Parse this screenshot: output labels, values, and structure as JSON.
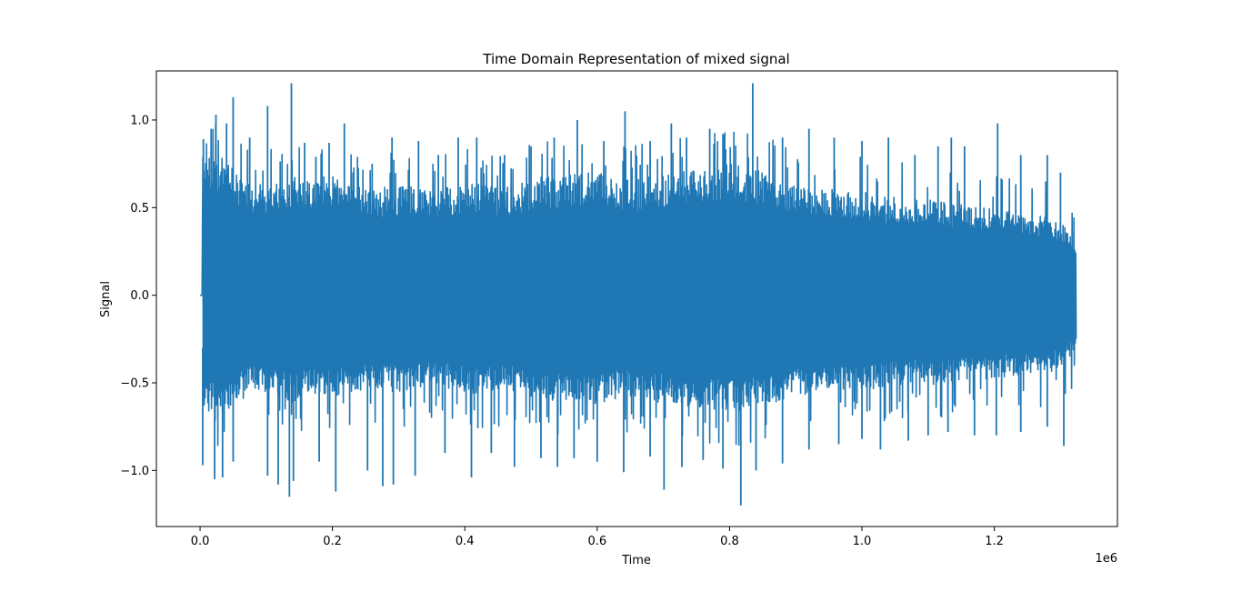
{
  "chart_data": {
    "type": "line",
    "title": "Time Domain Representation of mixed signal",
    "xlabel": "Time",
    "ylabel": "Signal",
    "x_offset_label": "1e6",
    "x_scale": 1000000,
    "xlim": [
      -66000,
      1386000
    ],
    "ylim": [
      -1.32,
      1.28
    ],
    "x_ticks": [
      0,
      200000,
      400000,
      600000,
      800000,
      1000000,
      1200000
    ],
    "x_tick_labels": [
      "0.0",
      "0.2",
      "0.4",
      "0.6",
      "0.8",
      "1.0",
      "1.2"
    ],
    "y_ticks": [
      -1.0,
      -0.5,
      0.0,
      0.5,
      1.0
    ],
    "y_tick_labels": [
      "−1.0",
      "−0.5",
      "0.0",
      "0.5",
      "1.0"
    ],
    "grid": false,
    "series": [
      {
        "color": "#1f77b4",
        "x_range": [
          0,
          1323000
        ],
        "leading_zero_until": 3000,
        "typical_band": [
          [
            5000,
            -0.7,
            0.8
          ],
          [
            20000,
            -0.65,
            0.78
          ],
          [
            40000,
            -0.68,
            0.8
          ],
          [
            60000,
            -0.6,
            0.68
          ],
          [
            80000,
            -0.55,
            0.65
          ],
          [
            100000,
            -0.55,
            0.64
          ],
          [
            120000,
            -0.58,
            0.66
          ],
          [
            140000,
            -0.62,
            0.7
          ],
          [
            160000,
            -0.58,
            0.66
          ],
          [
            180000,
            -0.56,
            0.68
          ],
          [
            200000,
            -0.58,
            0.68
          ],
          [
            220000,
            -0.55,
            0.65
          ],
          [
            240000,
            -0.55,
            0.62
          ],
          [
            260000,
            -0.52,
            0.6
          ],
          [
            280000,
            -0.55,
            0.62
          ],
          [
            300000,
            -0.55,
            0.62
          ],
          [
            320000,
            -0.56,
            0.64
          ],
          [
            340000,
            -0.5,
            0.6
          ],
          [
            360000,
            -0.52,
            0.6
          ],
          [
            380000,
            -0.54,
            0.62
          ],
          [
            400000,
            -0.56,
            0.64
          ],
          [
            420000,
            -0.56,
            0.64
          ],
          [
            440000,
            -0.55,
            0.63
          ],
          [
            460000,
            -0.54,
            0.62
          ],
          [
            480000,
            -0.56,
            0.64
          ],
          [
            500000,
            -0.58,
            0.66
          ],
          [
            520000,
            -0.6,
            0.68
          ],
          [
            540000,
            -0.6,
            0.68
          ],
          [
            560000,
            -0.62,
            0.7
          ],
          [
            580000,
            -0.62,
            0.7
          ],
          [
            600000,
            -0.62,
            0.7
          ],
          [
            620000,
            -0.6,
            0.68
          ],
          [
            640000,
            -0.58,
            0.66
          ],
          [
            660000,
            -0.58,
            0.66
          ],
          [
            680000,
            -0.6,
            0.68
          ],
          [
            700000,
            -0.62,
            0.7
          ],
          [
            720000,
            -0.62,
            0.7
          ],
          [
            740000,
            -0.64,
            0.72
          ],
          [
            760000,
            -0.64,
            0.72
          ],
          [
            780000,
            -0.66,
            0.74
          ],
          [
            800000,
            -0.66,
            0.76
          ],
          [
            820000,
            -0.66,
            0.74
          ],
          [
            840000,
            -0.64,
            0.72
          ],
          [
            860000,
            -0.62,
            0.7
          ],
          [
            880000,
            -0.6,
            0.66
          ],
          [
            900000,
            -0.58,
            0.64
          ],
          [
            920000,
            -0.56,
            0.62
          ],
          [
            940000,
            -0.56,
            0.62
          ],
          [
            960000,
            -0.54,
            0.6
          ],
          [
            980000,
            -0.54,
            0.6
          ],
          [
            1000000,
            -0.55,
            0.6
          ],
          [
            1020000,
            -0.54,
            0.58
          ],
          [
            1040000,
            -0.52,
            0.56
          ],
          [
            1060000,
            -0.52,
            0.56
          ],
          [
            1080000,
            -0.5,
            0.54
          ],
          [
            1100000,
            -0.52,
            0.56
          ],
          [
            1120000,
            -0.5,
            0.54
          ],
          [
            1140000,
            -0.5,
            0.52
          ],
          [
            1160000,
            -0.48,
            0.52
          ],
          [
            1180000,
            -0.48,
            0.5
          ],
          [
            1200000,
            -0.48,
            0.5
          ],
          [
            1220000,
            -0.46,
            0.48
          ],
          [
            1240000,
            -0.46,
            0.48
          ],
          [
            1260000,
            -0.45,
            0.46
          ],
          [
            1280000,
            -0.44,
            0.45
          ],
          [
            1300000,
            -0.42,
            0.42
          ],
          [
            1310000,
            -0.4,
            0.38
          ],
          [
            1320000,
            -0.32,
            0.28
          ]
        ],
        "peaks": [
          [
            5000,
            0.89
          ],
          [
            24000,
            1.03
          ],
          [
            40000,
            0.98
          ],
          [
            50000,
            1.13
          ],
          [
            75000,
            0.9
          ],
          [
            102000,
            1.08
          ],
          [
            138000,
            1.21
          ],
          [
            158000,
            0.87
          ],
          [
            175000,
            0.79
          ],
          [
            195000,
            0.87
          ],
          [
            218000,
            0.98
          ],
          [
            260000,
            0.75
          ],
          [
            290000,
            0.9
          ],
          [
            330000,
            0.88
          ],
          [
            360000,
            0.8
          ],
          [
            390000,
            0.9
          ],
          [
            418000,
            0.9
          ],
          [
            460000,
            0.8
          ],
          [
            500000,
            0.85
          ],
          [
            535000,
            0.9
          ],
          [
            570000,
            1.0
          ],
          [
            610000,
            0.88
          ],
          [
            642000,
            1.05
          ],
          [
            680000,
            0.88
          ],
          [
            712000,
            0.98
          ],
          [
            735000,
            0.9
          ],
          [
            770000,
            0.95
          ],
          [
            790000,
            0.92
          ],
          [
            835000,
            1.21
          ],
          [
            880000,
            0.9
          ],
          [
            920000,
            0.95
          ],
          [
            958000,
            0.9
          ],
          [
            1000000,
            0.88
          ],
          [
            1040000,
            0.9
          ],
          [
            1080000,
            0.8
          ],
          [
            1115000,
            0.85
          ],
          [
            1135000,
            0.9
          ],
          [
            1155000,
            0.85
          ],
          [
            1205000,
            0.98
          ],
          [
            1240000,
            0.8
          ],
          [
            1280000,
            0.8
          ],
          [
            1300000,
            0.7
          ]
        ],
        "troughs": [
          [
            4000,
            -0.97
          ],
          [
            22000,
            -1.05
          ],
          [
            34000,
            -1.04
          ],
          [
            50000,
            -0.95
          ],
          [
            102000,
            -1.03
          ],
          [
            118000,
            -1.08
          ],
          [
            135000,
            -1.15
          ],
          [
            141000,
            -1.06
          ],
          [
            180000,
            -0.95
          ],
          [
            205000,
            -1.12
          ],
          [
            253000,
            -1.0
          ],
          [
            276000,
            -1.09
          ],
          [
            292000,
            -1.08
          ],
          [
            325000,
            -1.03
          ],
          [
            370000,
            -0.9
          ],
          [
            410000,
            -1.04
          ],
          [
            440000,
            -0.9
          ],
          [
            475000,
            -0.98
          ],
          [
            515000,
            -0.93
          ],
          [
            540000,
            -0.98
          ],
          [
            565000,
            -0.93
          ],
          [
            600000,
            -0.95
          ],
          [
            640000,
            -1.01
          ],
          [
            680000,
            -0.92
          ],
          [
            701000,
            -1.11
          ],
          [
            728000,
            -0.98
          ],
          [
            760000,
            -0.94
          ],
          [
            790000,
            -0.99
          ],
          [
            817000,
            -1.2
          ],
          [
            840000,
            -1.0
          ],
          [
            880000,
            -0.96
          ],
          [
            920000,
            -0.88
          ],
          [
            965000,
            -0.85
          ],
          [
            1000000,
            -0.82
          ],
          [
            1028000,
            -0.88
          ],
          [
            1070000,
            -0.83
          ],
          [
            1100000,
            -0.8
          ],
          [
            1130000,
            -0.78
          ],
          [
            1170000,
            -0.8
          ],
          [
            1203000,
            -0.8
          ],
          [
            1240000,
            -0.78
          ],
          [
            1280000,
            -0.75
          ],
          [
            1305000,
            -0.86
          ]
        ]
      }
    ]
  }
}
